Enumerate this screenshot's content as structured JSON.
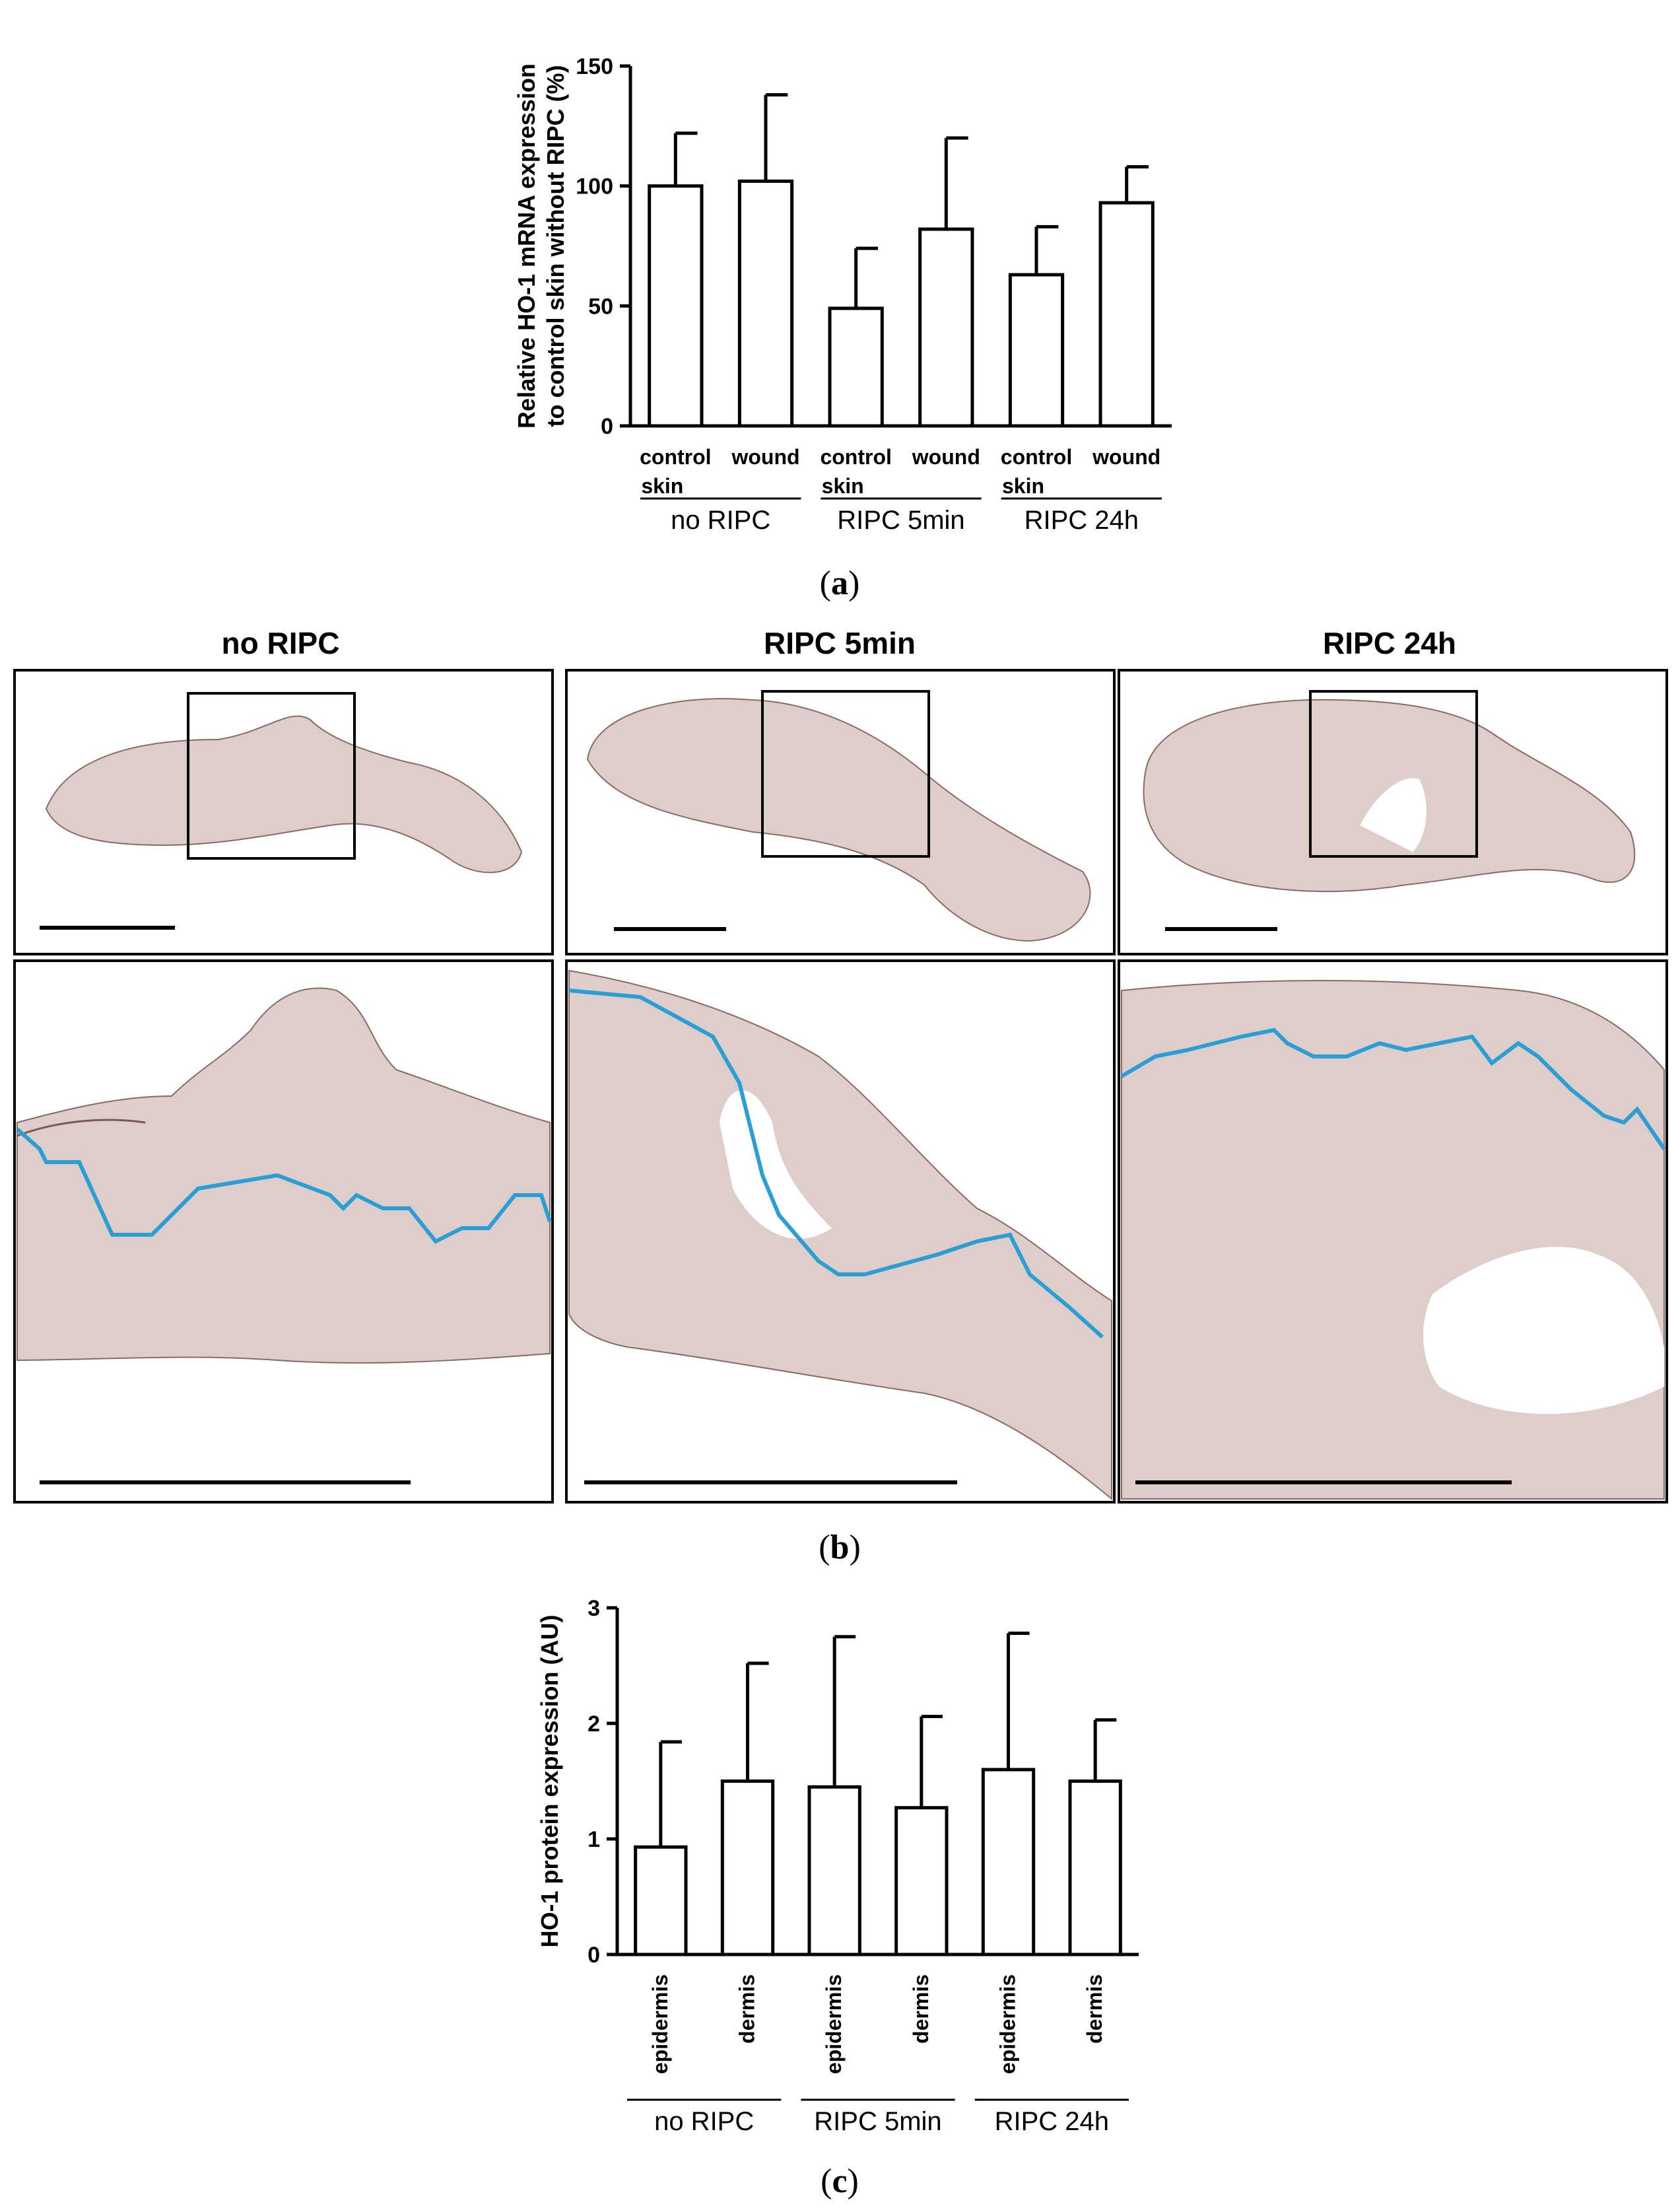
{
  "chart_data": [
    {
      "panel": "(a)",
      "type": "bar",
      "ylabel_lines": [
        "Relative HO-1 mRNA expression",
        "to control skin without  RIPC (%)"
      ],
      "ylim": [
        0,
        150
      ],
      "yticks": [
        0,
        50,
        100,
        150
      ],
      "categories": [
        [
          "control",
          "skin"
        ],
        [
          "wound"
        ],
        [
          "control",
          "skin"
        ],
        [
          "wound"
        ],
        [
          "control",
          "skin"
        ],
        [
          "wound"
        ]
      ],
      "values": [
        100,
        102,
        49,
        82,
        63,
        93
      ],
      "errors": [
        22,
        36,
        25,
        38,
        20,
        15
      ],
      "groups": [
        "no RIPC",
        "RIPC 5min",
        "RIPC 24h"
      ]
    },
    {
      "panel": "(c)",
      "type": "bar",
      "ylabel_lines": [
        "HO-1 protein expression (AU)"
      ],
      "ylim": [
        0,
        3
      ],
      "yticks": [
        0,
        1,
        2,
        3
      ],
      "categories": [
        "epidermis",
        "dermis",
        "epidermis",
        "dermis",
        "epidermis",
        "dermis"
      ],
      "values": [
        0.93,
        1.5,
        1.45,
        1.27,
        1.6,
        1.5
      ],
      "errors": [
        0.91,
        1.02,
        1.3,
        0.79,
        1.18,
        0.53
      ],
      "groups": [
        "no RIPC",
        "RIPC 5min",
        "RIPC 24h"
      ]
    }
  ],
  "micrographs": {
    "panel": "(b)",
    "columns": [
      "no RIPC",
      "RIPC 5min",
      "RIPC 24h"
    ],
    "tissue_color": "#b8908a",
    "outline_color": "#2a9fd6"
  }
}
